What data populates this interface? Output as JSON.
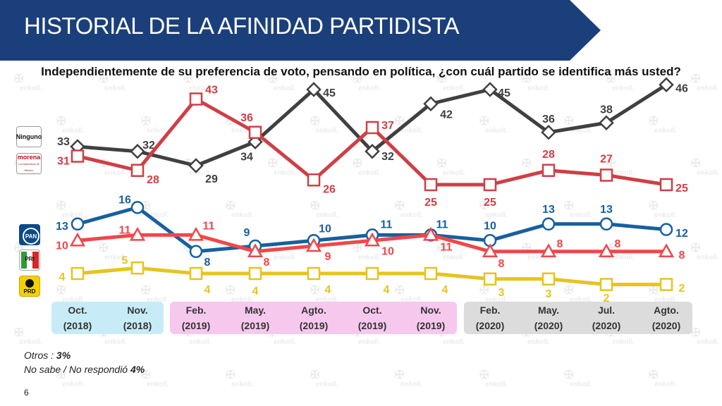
{
  "title": "HISTORIAL DE LA AFINIDAD PARTIDISTA",
  "question": "Independientemente de su preferencia de voto, pensando en política, ¿con cuál partido se identifica más usted?",
  "watermark": "enkoll.",
  "colors": {
    "header": "#1b3f7a",
    "ninguno": "#404040",
    "morena": "#cf3f46",
    "pan": "#17609e",
    "pri": "#f0474a",
    "prd": "#e6c41e",
    "band_2018": "#c7ecf8",
    "band_2019": "#f7c8ee",
    "band_2020": "#dcdcdc"
  },
  "legend": {
    "ninguno_label": "Ninguno",
    "morena_label": "morena",
    "morena_sub": "La esperanza de México",
    "pan_label": "PAN",
    "pri_label": "PRI",
    "prd_label": "PRD"
  },
  "chart_data": {
    "type": "line",
    "categories": [
      {
        "month": "Oct.",
        "year": "(2018)"
      },
      {
        "month": "Nov.",
        "year": "(2018)"
      },
      {
        "month": "Feb.",
        "year": "(2019)"
      },
      {
        "month": "May.",
        "year": "(2019)"
      },
      {
        "month": "Agto.",
        "year": "(2019)"
      },
      {
        "month": "Oct.",
        "year": "(2019)"
      },
      {
        "month": "Nov.",
        "year": "(2019)"
      },
      {
        "month": "Feb.",
        "year": "(2020)"
      },
      {
        "month": "May.",
        "year": "(2020)"
      },
      {
        "month": "Jul.",
        "year": "(2020)"
      },
      {
        "month": "Agto.",
        "year": "(2020)"
      }
    ],
    "year_bands": [
      {
        "year": "2018",
        "from": 0,
        "to": 1
      },
      {
        "year": "2019",
        "from": 2,
        "to": 6
      },
      {
        "year": "2020",
        "from": 7,
        "to": 10
      }
    ],
    "series": [
      {
        "name": "Ninguno",
        "key": "ninguno",
        "marker": "diamond",
        "values": [
          33,
          32,
          29,
          34,
          45,
          32,
          42,
          45,
          36,
          38,
          46
        ]
      },
      {
        "name": "morena",
        "key": "morena",
        "marker": "square",
        "values": [
          31,
          28,
          43,
          36,
          26,
          37,
          25,
          25,
          28,
          27,
          25
        ]
      },
      {
        "name": "PAN",
        "key": "pan",
        "marker": "circle",
        "values": [
          13,
          16,
          8,
          9,
          10,
          11,
          11,
          10,
          13,
          13,
          12
        ]
      },
      {
        "name": "PRI",
        "key": "pri",
        "marker": "triangle",
        "values": [
          10,
          11,
          11,
          8,
          9,
          10,
          11,
          8,
          8,
          8,
          8
        ]
      },
      {
        "name": "PRD",
        "key": "prd",
        "marker": "square",
        "values": [
          4,
          5,
          4,
          4,
          4,
          4,
          4,
          3,
          3,
          2,
          2
        ]
      }
    ]
  },
  "footnotes": {
    "otros_label": "Otros : ",
    "otros_value": "3%",
    "nosabe_label": "No sabe / No respondió ",
    "nosabe_value": "4%"
  },
  "page_number": "6"
}
